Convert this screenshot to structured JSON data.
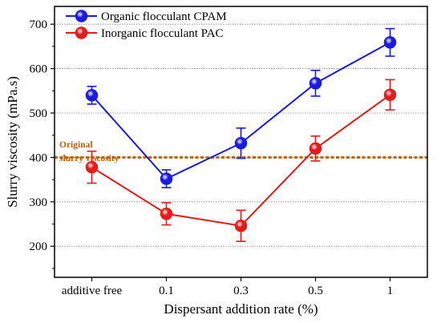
{
  "chart_data": {
    "type": "line",
    "title": "",
    "xlabel": "Dispersant addition rate (%)",
    "ylabel": "Slurry viscosity (mPa.s)",
    "categories": [
      "additive free",
      "0.1",
      "0.3",
      "0.5",
      "1"
    ],
    "ylim": [
      130,
      740
    ],
    "yticks": [
      200,
      300,
      400,
      500,
      600,
      700
    ],
    "grid": true,
    "legend_placement": "top-left",
    "series": [
      {
        "name": "Organic flocculant CPAM",
        "color": "#1a1ae6",
        "values": [
          540,
          352,
          432,
          567,
          659
        ],
        "errors": [
          20,
          20,
          34,
          29,
          31
        ]
      },
      {
        "name": "Inorganic flocculant PAC",
        "color": "#e61a1a",
        "values": [
          378,
          273,
          246,
          420,
          541
        ],
        "errors": [
          36,
          25,
          35,
          28,
          34
        ]
      }
    ],
    "reference_line": {
      "value": 400,
      "color": "#c0600a",
      "label_line1": "Original",
      "label_line2": "slurry viscosity"
    }
  }
}
